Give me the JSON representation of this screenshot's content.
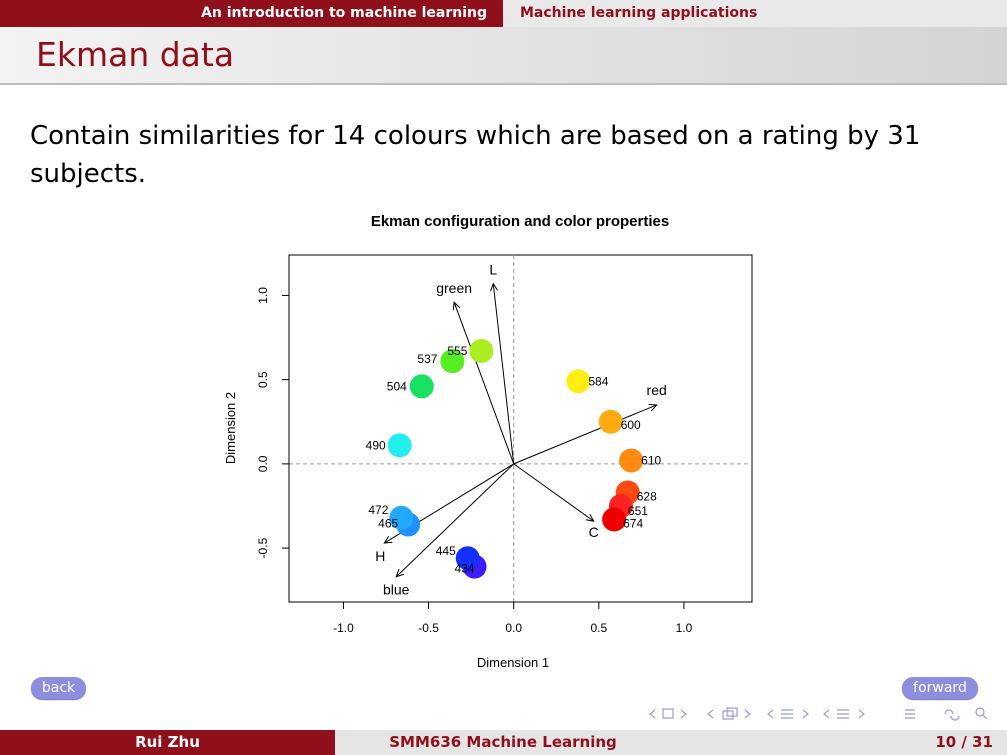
{
  "header": {
    "section_left": "An introduction to machine learning",
    "section_right": "Machine learning applications"
  },
  "frame_title": "Ekman data",
  "body_text": "Contain similarities for 14 colours which are based on a rating by 31 subjects.",
  "chart_data": {
    "type": "scatter",
    "title": "Ekman configuration and color properties",
    "xlabel": "Dimension 1",
    "ylabel": "Dimension 2",
    "xlim": [
      -1.32,
      1.4
    ],
    "ylim": [
      -0.82,
      1.24
    ],
    "xticks": [
      -1.0,
      -0.5,
      0.0,
      0.5,
      1.0
    ],
    "xtick_labels": [
      "-1.0",
      "-0.5",
      "0.0",
      "0.5",
      "1.0"
    ],
    "yticks": [
      -0.5,
      0.0,
      0.5,
      1.0
    ],
    "ytick_labels": [
      "-0.5",
      "0.0",
      "0.5",
      "1.0"
    ],
    "reference_lines": {
      "x": 0,
      "y": 0
    },
    "points": [
      {
        "label": "434",
        "x": -0.23,
        "y": -0.61,
        "color": "#3b1cff"
      },
      {
        "label": "445",
        "x": -0.27,
        "y": -0.56,
        "color": "#1430ff"
      },
      {
        "label": "465",
        "x": -0.62,
        "y": -0.36,
        "color": "#1e90ff"
      },
      {
        "label": "472",
        "x": -0.66,
        "y": -0.32,
        "color": "#22a8ff"
      },
      {
        "label": "490",
        "x": -0.67,
        "y": 0.11,
        "color": "#22eeee"
      },
      {
        "label": "504",
        "x": -0.54,
        "y": 0.46,
        "color": "#18e060"
      },
      {
        "label": "537",
        "x": -0.36,
        "y": 0.61,
        "color": "#55ee22"
      },
      {
        "label": "555",
        "x": -0.19,
        "y": 0.67,
        "color": "#aaee22"
      },
      {
        "label": "584",
        "x": 0.38,
        "y": 0.49,
        "color": "#ffee11"
      },
      {
        "label": "600",
        "x": 0.57,
        "y": 0.25,
        "color": "#ffaa11"
      },
      {
        "label": "610",
        "x": 0.69,
        "y": 0.02,
        "color": "#ff8a11"
      },
      {
        "label": "628",
        "x": 0.67,
        "y": -0.17,
        "color": "#ff4a11"
      },
      {
        "label": "651",
        "x": 0.63,
        "y": -0.25,
        "color": "#ff2222"
      },
      {
        "label": "674",
        "x": 0.59,
        "y": -0.33,
        "color": "#ee0000"
      }
    ],
    "arrows": [
      {
        "label": "L",
        "x": -0.12,
        "y": 1.07
      },
      {
        "label": "green",
        "x": -0.35,
        "y": 0.96
      },
      {
        "label": "red",
        "x": 0.84,
        "y": 0.35
      },
      {
        "label": "C",
        "x": 0.47,
        "y": -0.34
      },
      {
        "label": "H",
        "x": -0.76,
        "y": -0.47
      },
      {
        "label": "blue",
        "x": -0.69,
        "y": -0.67
      }
    ]
  },
  "nav_buttons": {
    "back": "back",
    "forward": "forward"
  },
  "footer": {
    "author": "Rui Zhu",
    "course": "SMM636 Machine Learning",
    "page": "10 / 31"
  }
}
